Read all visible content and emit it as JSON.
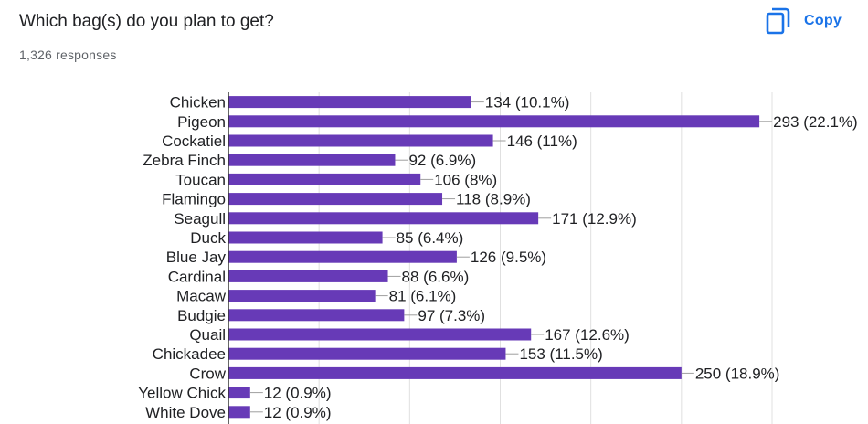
{
  "question": {
    "title": "Which bag(s) do you plan to get?",
    "response_count": "1,326 responses"
  },
  "toolbar": {
    "copy_label": "Copy",
    "copy_icon": "copy-icon"
  },
  "colors": {
    "bar": "#673ab7",
    "accent": "#1a73e8",
    "grid": "#e0e0e0"
  },
  "chart_data": {
    "type": "bar",
    "orientation": "horizontal",
    "title": "",
    "xlabel": "",
    "ylabel": "",
    "grid": true,
    "xlim": [
      0,
      300
    ],
    "categories": [
      "Chicken",
      "Pigeon",
      "Cockatiel",
      "Zebra Finch",
      "Toucan",
      "Flamingo",
      "Seagull",
      "Duck",
      "Blue Jay",
      "Cardinal",
      "Macaw",
      "Budgie",
      "Quail",
      "Chickadee",
      "Crow",
      "Yellow Chick",
      "White Dove"
    ],
    "values": [
      134,
      293,
      146,
      92,
      106,
      118,
      171,
      85,
      126,
      88,
      81,
      97,
      167,
      153,
      250,
      12,
      12
    ],
    "labels": [
      "134 (10.1%)",
      "293 (22.1%)",
      "146 (11%)",
      "92 (6.9%)",
      "106 (8%)",
      "118 (8.9%)",
      "171 (12.9%)",
      "85 (6.4%)",
      "126 (9.5%)",
      "88 (6.6%)",
      "81 (6.1%)",
      "97 (7.3%)",
      "167 (12.6%)",
      "153 (11.5%)",
      "250 (18.9%)",
      "12 (0.9%)",
      "12 (0.9%)"
    ]
  }
}
